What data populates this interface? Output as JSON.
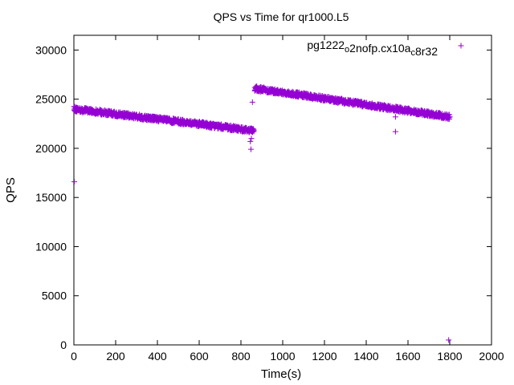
{
  "chart_data": {
    "type": "scatter",
    "title": "QPS vs Time for qr1000.L5",
    "xlabel": "Time(s)",
    "ylabel": "QPS",
    "xlim": [
      0,
      2000
    ],
    "ylim": [
      0,
      31500
    ],
    "x_ticks": [
      0,
      200,
      400,
      600,
      800,
      1000,
      1200,
      1400,
      1600,
      1800,
      2000
    ],
    "y_ticks": [
      0,
      5000,
      10000,
      15000,
      20000,
      25000,
      30000
    ],
    "grid": false,
    "legend_position": "top-right",
    "marker": "+",
    "color": "#9400d3",
    "series": [
      {
        "name": "pg1222_o2nofp.cx10a_c8r32",
        "legend_parts": [
          {
            "text": "pg1222",
            "sub": false
          },
          {
            "text": "o",
            "sub": true
          },
          {
            "text": "2nofp.cx10a",
            "sub": false
          },
          {
            "text": "c",
            "sub": true
          },
          {
            "text": "8r32",
            "sub": false
          }
        ],
        "segments": [
          {
            "x_start": 0,
            "x_end": 860,
            "y_start": 24000,
            "y_end": 21800,
            "spread": 250
          },
          {
            "x_start": 865,
            "x_end": 1800,
            "y_start": 26100,
            "y_end": 23200,
            "spread": 250
          }
        ],
        "outliers": [
          {
            "x": 2,
            "y": 16600
          },
          {
            "x": 845,
            "y": 20700
          },
          {
            "x": 848,
            "y": 19900
          },
          {
            "x": 850,
            "y": 21000
          },
          {
            "x": 855,
            "y": 24700
          },
          {
            "x": 1540,
            "y": 23200
          },
          {
            "x": 1540,
            "y": 21700
          },
          {
            "x": 1795,
            "y": 500
          }
        ]
      }
    ]
  }
}
